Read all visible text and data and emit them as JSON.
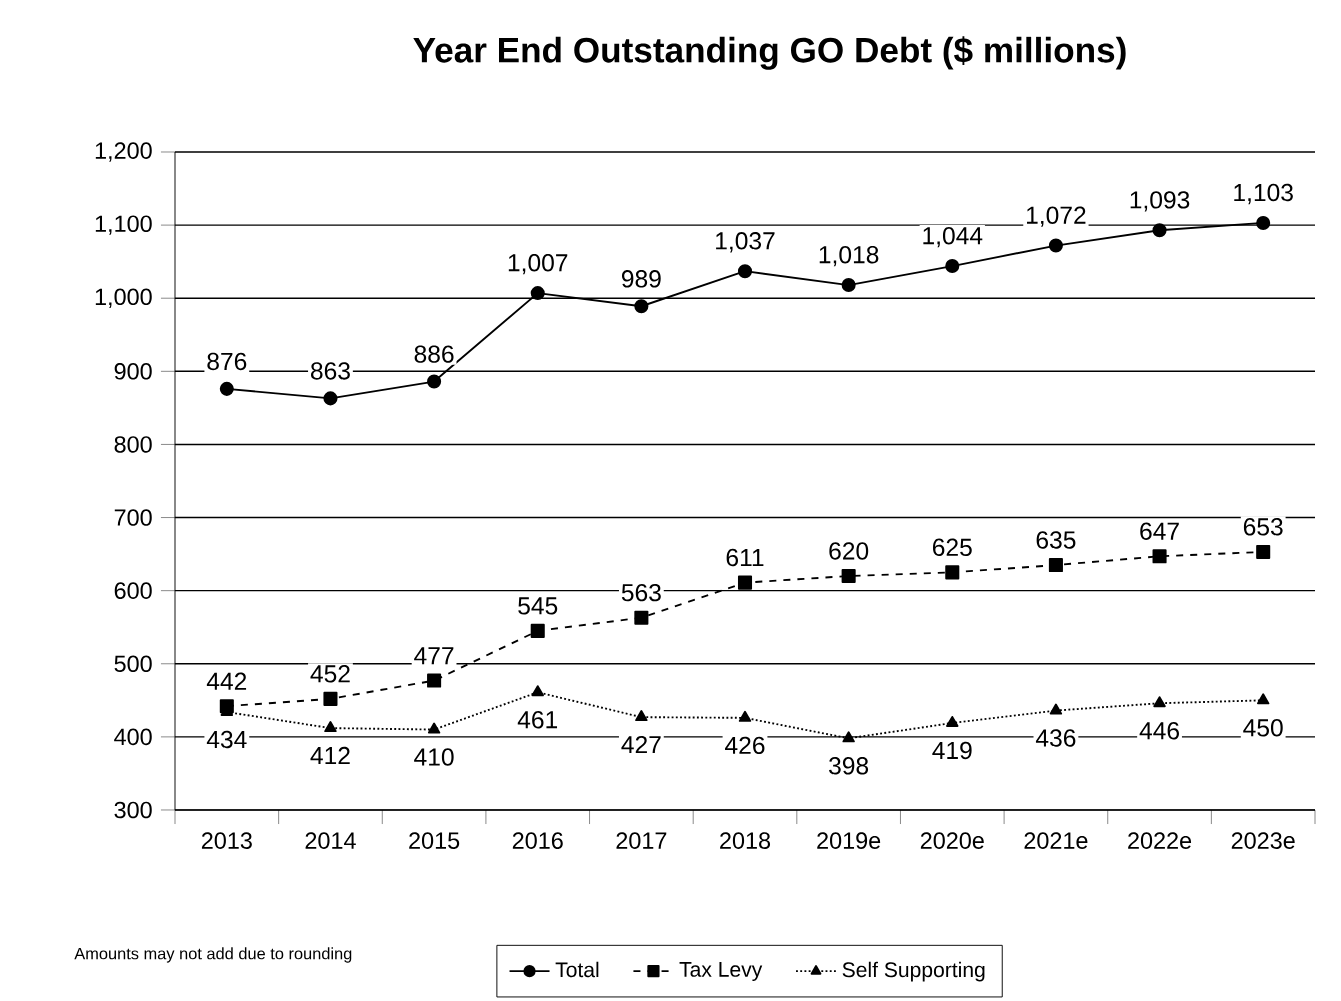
{
  "chart_data": {
    "type": "line",
    "title": "Year End Outstanding GO Debt ($ millions)",
    "categories": [
      "2013",
      "2014",
      "2015",
      "2016",
      "2017",
      "2018",
      "2019e",
      "2020e",
      "2021e",
      "2022e",
      "2023e"
    ],
    "series": [
      {
        "name": "Total",
        "color": "#000000",
        "marker": "circle",
        "line_style": "solid",
        "values": [
          876,
          863,
          886,
          1007,
          989,
          1037,
          1018,
          1044,
          1072,
          1093,
          1103
        ],
        "value_labels": [
          "876",
          "863",
          "886",
          "1,007",
          "989",
          "1,037",
          "1,018",
          "1,044",
          "1,072",
          "1,093",
          "1,103"
        ]
      },
      {
        "name": "Tax Levy",
        "color": "#000000",
        "marker": "square",
        "line_style": "dashed",
        "values": [
          442,
          452,
          477,
          545,
          563,
          611,
          620,
          625,
          635,
          647,
          653
        ],
        "value_labels": [
          "442",
          "452",
          "477",
          "545",
          "563",
          "611",
          "620",
          "625",
          "635",
          "647",
          "653"
        ]
      },
      {
        "name": "Self Supporting",
        "color": "#000000",
        "marker": "triangle",
        "line_style": "dotted",
        "values": [
          434,
          412,
          410,
          461,
          427,
          426,
          398,
          419,
          436,
          446,
          450
        ],
        "value_labels": [
          "434",
          "412",
          "410",
          "461",
          "427",
          "426",
          "398",
          "419",
          "436",
          "446",
          "450"
        ]
      }
    ],
    "ylim": [
      300,
      1200
    ],
    "yticks": [
      300,
      400,
      500,
      600,
      700,
      800,
      900,
      {
        "value": 1000,
        "label": "1,000"
      },
      {
        "value": 1100,
        "label": "1,100"
      },
      {
        "value": 1200,
        "label": "1,200"
      }
    ],
    "grid": "y",
    "legend": "bottom",
    "annotations": [
      "Amounts may not add due to rounding"
    ]
  }
}
